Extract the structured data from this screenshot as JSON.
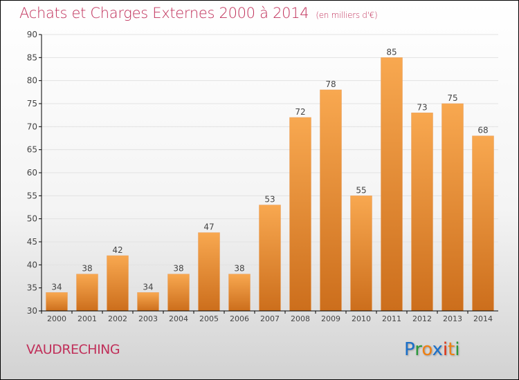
{
  "title": "Achats et Charges Externes 2000 à 2014",
  "unit": "(en milliers d'€)",
  "town": "VAUDRECHING",
  "logo": {
    "text": "Proxiti",
    "letters": [
      {
        "c": "P",
        "color": "#1a6fc9"
      },
      {
        "c": "r",
        "color": "#2a9a3a"
      },
      {
        "c": "o",
        "color": "#f07f10"
      },
      {
        "c": "x",
        "color": "#1a6fc9"
      },
      {
        "c": "i",
        "color": "#e03010"
      },
      {
        "c": "t",
        "color": "#f07f10"
      },
      {
        "c": "i",
        "color": "#2a9a3a"
      }
    ]
  },
  "chart_data": {
    "type": "bar",
    "title": "Achats et Charges Externes 2000 à 2014",
    "xlabel": "",
    "ylabel": "(en milliers d'€)",
    "categories": [
      "2000",
      "2001",
      "2002",
      "2003",
      "2004",
      "2005",
      "2006",
      "2007",
      "2008",
      "2009",
      "2010",
      "2011",
      "2012",
      "2013",
      "2014"
    ],
    "values": [
      34,
      38,
      42,
      34,
      38,
      47,
      38,
      53,
      72,
      78,
      55,
      85,
      73,
      75,
      68
    ],
    "ylim": [
      30,
      90
    ],
    "yticks": [
      30,
      35,
      40,
      45,
      50,
      55,
      60,
      65,
      70,
      75,
      80,
      85,
      90
    ],
    "bar_color": "#f0892a",
    "grid": true
  }
}
